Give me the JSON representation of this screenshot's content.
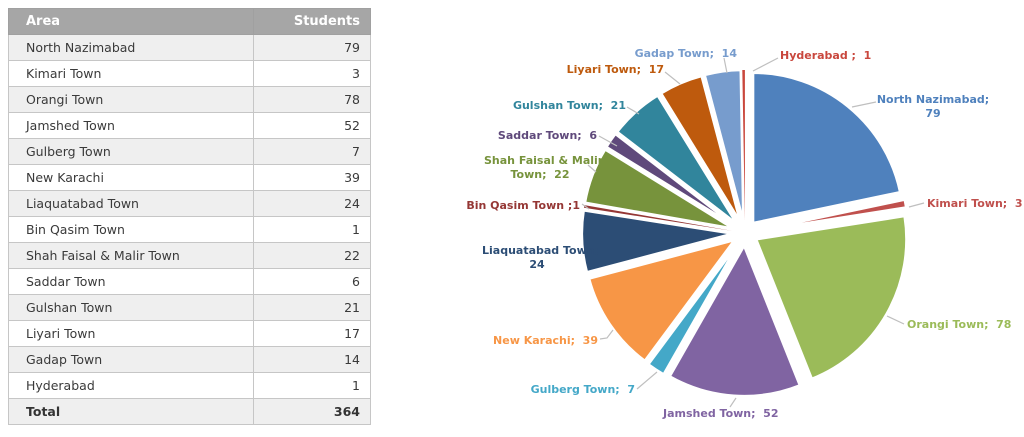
{
  "table": {
    "headers": {
      "area": "Area",
      "students": "Students"
    },
    "rows": [
      {
        "area": "North Nazimabad",
        "students": "79"
      },
      {
        "area": "Kimari Town",
        "students": "3"
      },
      {
        "area": "Orangi Town",
        "students": "78"
      },
      {
        "area": "Jamshed Town",
        "students": "52"
      },
      {
        "area": "Gulberg Town",
        "students": "7"
      },
      {
        "area": "New Karachi",
        "students": "39"
      },
      {
        "area": "Liaquatabad Town",
        "students": "24"
      },
      {
        "area": "Bin Qasim Town",
        "students": "1"
      },
      {
        "area": "Shah Faisal & Malir Town",
        "students": "22"
      },
      {
        "area": "Saddar Town",
        "students": "6"
      },
      {
        "area": "Gulshan Town",
        "students": "21"
      },
      {
        "area": "Liyari Town",
        "students": "17"
      },
      {
        "area": "Gadap Town",
        "students": "14"
      },
      {
        "area": "Hyderabad",
        "students": "1"
      }
    ],
    "total": {
      "area": "Total",
      "students": "364"
    }
  },
  "chart_data": {
    "type": "pie",
    "title": "",
    "legend": "none",
    "direction": "clockwise",
    "start_angle_deg": 0,
    "exploded": true,
    "total": 364,
    "leader_line_color": "#BFBFBF",
    "categories": [
      "North Nazimabad",
      "Kimari Town",
      "Orangi Town",
      "Jamshed Town",
      "Gulberg Town",
      "New Karachi",
      "Liaquatabad Town",
      "Bin Qasim Town",
      "Shah Faisal & Malir Town",
      "Saddar Town",
      "Gulshan Town",
      "Liyari Town",
      "Gadap Town",
      "Hyderabad"
    ],
    "values": [
      79,
      3,
      78,
      52,
      7,
      39,
      24,
      1,
      22,
      6,
      21,
      17,
      14,
      1
    ],
    "slices": [
      {
        "name": "North Nazimabad",
        "value": 79,
        "color": "#4F81BD",
        "label_text": "North Nazimabad;\n79"
      },
      {
        "name": "Kimari Town",
        "value": 3,
        "color": "#C0504D",
        "label_text": "Kimari Town;  3"
      },
      {
        "name": "Orangi Town",
        "value": 78,
        "color": "#9BBB59",
        "label_text": "Orangi Town;  78"
      },
      {
        "name": "Jamshed Town",
        "value": 52,
        "color": "#8064A2",
        "label_text": "Jamshed Town;  52"
      },
      {
        "name": "Gulberg Town",
        "value": 7,
        "color": "#44A8C8",
        "label_text": "Gulberg Town;  7"
      },
      {
        "name": "New Karachi",
        "value": 39,
        "color": "#F79646",
        "label_text": "New Karachi;  39"
      },
      {
        "name": "Liaquatabad Town",
        "value": 24,
        "color": "#2C4D75",
        "label_text": "Liaquatabad Town;\n24"
      },
      {
        "name": "Bin Qasim Town",
        "value": 1,
        "color": "#953735",
        "label_text": "Bin Qasim Town ;1"
      },
      {
        "name": "Shah Faisal & Malir Town",
        "value": 22,
        "color": "#77933C",
        "label_text": "Shah Faisal & Malir\nTown;  22"
      },
      {
        "name": "Saddar Town",
        "value": 6,
        "color": "#5F497B",
        "label_text": "Saddar Town;  6"
      },
      {
        "name": "Gulshan Town",
        "value": 21,
        "color": "#31859C",
        "label_text": "Gulshan Town;  21"
      },
      {
        "name": "Liyari Town",
        "value": 17,
        "color": "#BE5A0D",
        "label_text": "Liyari Town;  17"
      },
      {
        "name": "Gadap Town",
        "value": 14,
        "color": "#779CCD",
        "label_text": "Gadap Town;  14"
      },
      {
        "name": "Hyderabad",
        "value": 1,
        "color": "#C9473D",
        "label_text": "Hyderabad ;  1"
      }
    ]
  }
}
